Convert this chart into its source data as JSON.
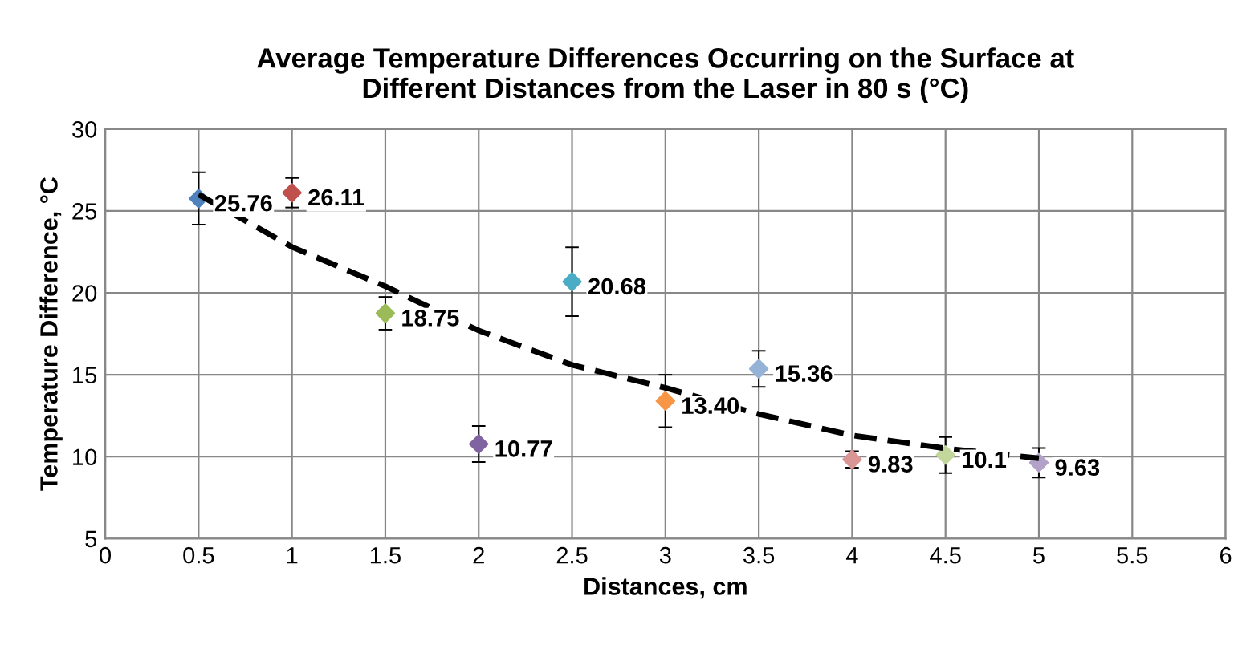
{
  "chart_data": {
    "type": "scatter",
    "title": "Average Temperature Differences Occurring on the Surface at\nDifferent Distances from the Laser in 80 s (°C)",
    "xlabel": "Distances, cm",
    "ylabel": "Temperature Difference, °C",
    "xlim": [
      0,
      6
    ],
    "xticks": [
      0,
      0.5,
      1,
      1.5,
      2,
      2.5,
      3,
      3.5,
      4,
      4.5,
      5,
      5.5,
      6
    ],
    "ylim": [
      5,
      30
    ],
    "yticks": [
      5,
      10,
      15,
      20,
      25,
      30
    ],
    "grid": true,
    "marker": "diamond",
    "series": [
      {
        "x": [
          0.5,
          1,
          1.5,
          2,
          2.5,
          3,
          3.5,
          4,
          4.5,
          5
        ],
        "values": [
          25.76,
          26.11,
          18.75,
          10.77,
          20.68,
          13.4,
          15.36,
          9.83,
          10.1,
          9.63
        ],
        "colors": [
          "#4f81bd",
          "#c0504d",
          "#9bbb59",
          "#8064a2",
          "#4bacc6",
          "#f79646",
          "#95b3d7",
          "#d99694",
          "#c3d69b",
          "#b3a2c7"
        ],
        "errors": [
          1.6,
          0.9,
          1.0,
          1.1,
          2.1,
          1.6,
          1.1,
          0.5,
          1.1,
          0.9
        ],
        "value_labels": [
          "25.76",
          "26.11",
          "18.75",
          "10.77",
          "20.68",
          "13.40",
          "15.36",
          "9.83",
          "10.1",
          "9.63"
        ]
      },
      {
        "type": "line",
        "x": [
          0.5,
          1,
          1.5,
          2,
          2.5,
          3,
          3.5,
          4,
          4.5,
          5
        ],
        "values": [
          26.0,
          22.8,
          20.4,
          17.7,
          15.6,
          14.2,
          12.6,
          11.3,
          10.5,
          9.9
        ],
        "color": "#000000",
        "line_style": "dashed",
        "marker": "none"
      }
    ]
  }
}
